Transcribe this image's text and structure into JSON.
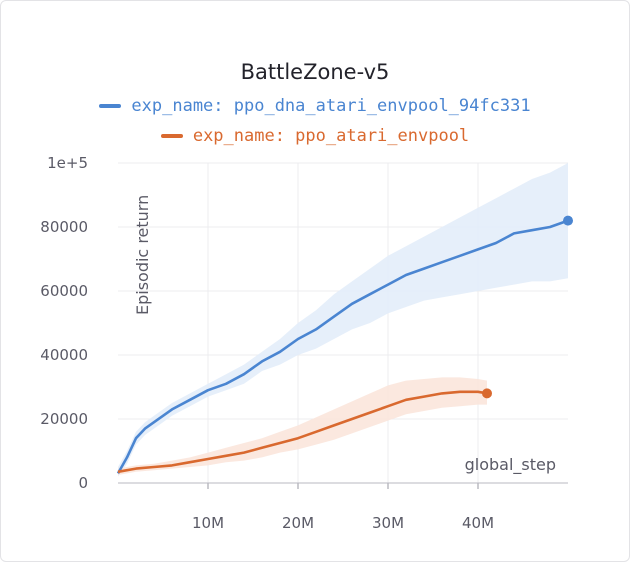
{
  "chart_data": {
    "type": "line",
    "title": "BattleZone-v5",
    "xlabel": "global_step",
    "ylabel": "Episodic return",
    "xlim": [
      0,
      50000000
    ],
    "ylim": [
      0,
      100000
    ],
    "x_ticks": [
      10000000,
      20000000,
      30000000,
      40000000
    ],
    "x_tick_labels": [
      "10M",
      "20M",
      "30M",
      "40M"
    ],
    "y_ticks": [
      0,
      20000,
      40000,
      60000,
      80000,
      100000
    ],
    "y_tick_labels": [
      "0",
      "20000",
      "40000",
      "60000",
      "80000",
      "1e+5"
    ],
    "grid": true,
    "legend_position": "top",
    "series": [
      {
        "name": "exp_name: ppo_dna_atari_envpool_94fc331",
        "color": "#4a85d1",
        "band_color": "#e3edf9",
        "x": [
          0,
          1000000,
          2000000,
          3000000,
          4000000,
          5000000,
          6000000,
          8000000,
          10000000,
          12000000,
          14000000,
          16000000,
          18000000,
          20000000,
          22000000,
          24000000,
          26000000,
          28000000,
          30000000,
          32000000,
          34000000,
          36000000,
          38000000,
          40000000,
          42000000,
          44000000,
          46000000,
          48000000,
          50000000
        ],
        "values": [
          3000,
          8000,
          14000,
          17000,
          19000,
          21000,
          23000,
          26000,
          29000,
          31000,
          34000,
          38000,
          41000,
          45000,
          48000,
          52000,
          56000,
          59000,
          62000,
          65000,
          67000,
          69000,
          71000,
          73000,
          75000,
          78000,
          79000,
          80000,
          82000
        ],
        "lower": [
          2000,
          6000,
          12000,
          15000,
          17000,
          19000,
          21000,
          24000,
          27000,
          29000,
          31000,
          35000,
          37000,
          40000,
          42000,
          45000,
          48000,
          50000,
          53000,
          55000,
          57000,
          58000,
          59000,
          60000,
          61000,
          62000,
          63000,
          63000,
          64000
        ],
        "upper": [
          5000,
          10000,
          16000,
          19000,
          21000,
          23000,
          25000,
          28000,
          31000,
          34000,
          37000,
          41000,
          45000,
          50000,
          54000,
          59000,
          63000,
          67000,
          71000,
          74000,
          77000,
          80000,
          83000,
          86000,
          89000,
          92000,
          95000,
          97000,
          100000
        ],
        "end_marker": true
      },
      {
        "name": "exp_name: ppo_atari_envpool",
        "color": "#d9692f",
        "band_color": "#fbe6db",
        "x": [
          0,
          1000000,
          2000000,
          4000000,
          6000000,
          8000000,
          10000000,
          12000000,
          14000000,
          16000000,
          18000000,
          20000000,
          22000000,
          24000000,
          26000000,
          28000000,
          30000000,
          32000000,
          34000000,
          36000000,
          38000000,
          40000000,
          41000000
        ],
        "values": [
          3500,
          4000,
          4500,
          5000,
          5500,
          6500,
          7500,
          8500,
          9500,
          11000,
          12500,
          14000,
          16000,
          18000,
          20000,
          22000,
          24000,
          26000,
          27000,
          28000,
          28500,
          28500,
          28000
        ],
        "lower": [
          2500,
          3000,
          3500,
          4000,
          4500,
          5000,
          5500,
          6500,
          7000,
          8000,
          9500,
          10500,
          12000,
          13500,
          15500,
          17500,
          19500,
          21500,
          22500,
          23500,
          24000,
          24500,
          24500
        ],
        "upper": [
          4500,
          5000,
          5500,
          6000,
          7000,
          8000,
          9500,
          11000,
          12500,
          14000,
          16000,
          18000,
          20500,
          23000,
          25500,
          28000,
          30500,
          32000,
          32500,
          33000,
          33000,
          32500,
          32000
        ],
        "end_marker": true
      }
    ]
  }
}
